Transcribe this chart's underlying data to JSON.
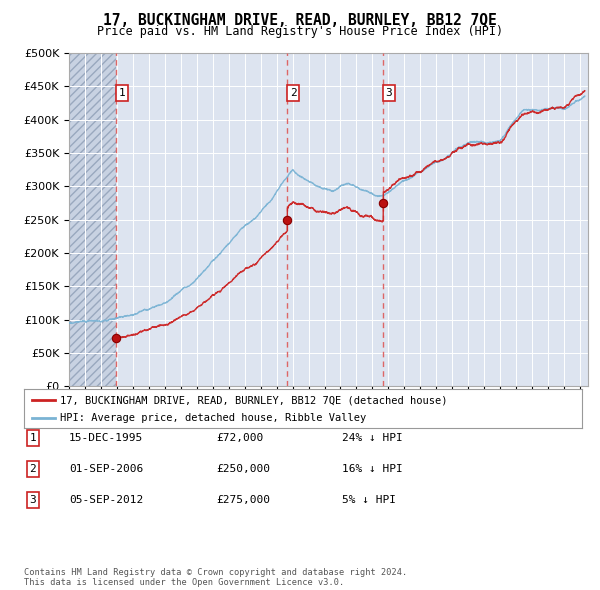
{
  "title": "17, BUCKINGHAM DRIVE, READ, BURNLEY, BB12 7QE",
  "subtitle": "Price paid vs. HM Land Registry's House Price Index (HPI)",
  "hpi_color": "#7ab3d4",
  "price_color": "#cc2222",
  "vline_color": "#dd6666",
  "background_color": "#dde4f0",
  "ylim": [
    0,
    500000
  ],
  "yticks": [
    0,
    50000,
    100000,
    150000,
    200000,
    250000,
    300000,
    350000,
    400000,
    450000,
    500000
  ],
  "purchases": [
    {
      "label": "1",
      "date": 1995.96,
      "price": 72000
    },
    {
      "label": "2",
      "date": 2006.67,
      "price": 250000
    },
    {
      "label": "3",
      "date": 2012.68,
      "price": 275000
    }
  ],
  "legend_price_label": "17, BUCKINGHAM DRIVE, READ, BURNLEY, BB12 7QE (detached house)",
  "legend_hpi_label": "HPI: Average price, detached house, Ribble Valley",
  "table_rows": [
    {
      "num": "1",
      "date": "15-DEC-1995",
      "price": "£72,000",
      "hpi": "24% ↓ HPI"
    },
    {
      "num": "2",
      "date": "01-SEP-2006",
      "price": "£250,000",
      "hpi": "16% ↓ HPI"
    },
    {
      "num": "3",
      "date": "05-SEP-2012",
      "price": "£275,000",
      "hpi": "5% ↓ HPI"
    }
  ],
  "footer": "Contains HM Land Registry data © Crown copyright and database right 2024.\nThis data is licensed under the Open Government Licence v3.0.",
  "xmin": 1993.0,
  "xmax": 2025.5
}
